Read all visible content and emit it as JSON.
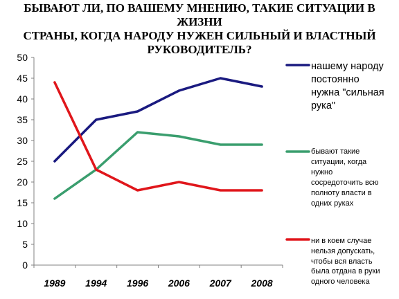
{
  "chart_data": {
    "type": "line",
    "title": [
      "БЫВАЮТ ЛИ, ПО ВАШЕМУ МНЕНИЮ, ТАКИЕ СИТУАЦИИ В ЖИЗНИ",
      "СТРАНЫ, КОГДА НАРОДУ НУЖЕН СИЛЬНЫЙ И ВЛАСТНЫЙ",
      "РУКОВОДИТЕЛЬ?"
    ],
    "categories": [
      "1989",
      "1994",
      "1996",
      "2006",
      "2007",
      "2008"
    ],
    "ylim": [
      0,
      50
    ],
    "yticks": [
      "0",
      "5",
      "10",
      "15",
      "20",
      "25",
      "30",
      "35",
      "40",
      "45",
      "50"
    ],
    "grid": false,
    "legend_position": "right",
    "series": [
      {
        "name": [
          "нашему народу",
          "постоянно",
          "нужна \"сильная",
          "рука\""
        ],
        "color": "#1a1a80",
        "values": [
          25,
          35,
          37,
          42,
          45,
          43
        ]
      },
      {
        "name": [
          "бывают такие",
          "ситуации, когда",
          "нужно",
          "сосредоточить всю",
          "полноту власти в",
          "одних руках"
        ],
        "color": "#3a9e6e",
        "values": [
          16,
          23,
          32,
          31,
          29,
          29
        ]
      },
      {
        "name": [
          "ни в коем случае",
          "нельзя допускать,",
          "чтобы вся власть",
          "была отдана в руки",
          "одного человека"
        ],
        "color": "#e0161b",
        "values": [
          44,
          23,
          18,
          20,
          18,
          18
        ]
      }
    ]
  }
}
